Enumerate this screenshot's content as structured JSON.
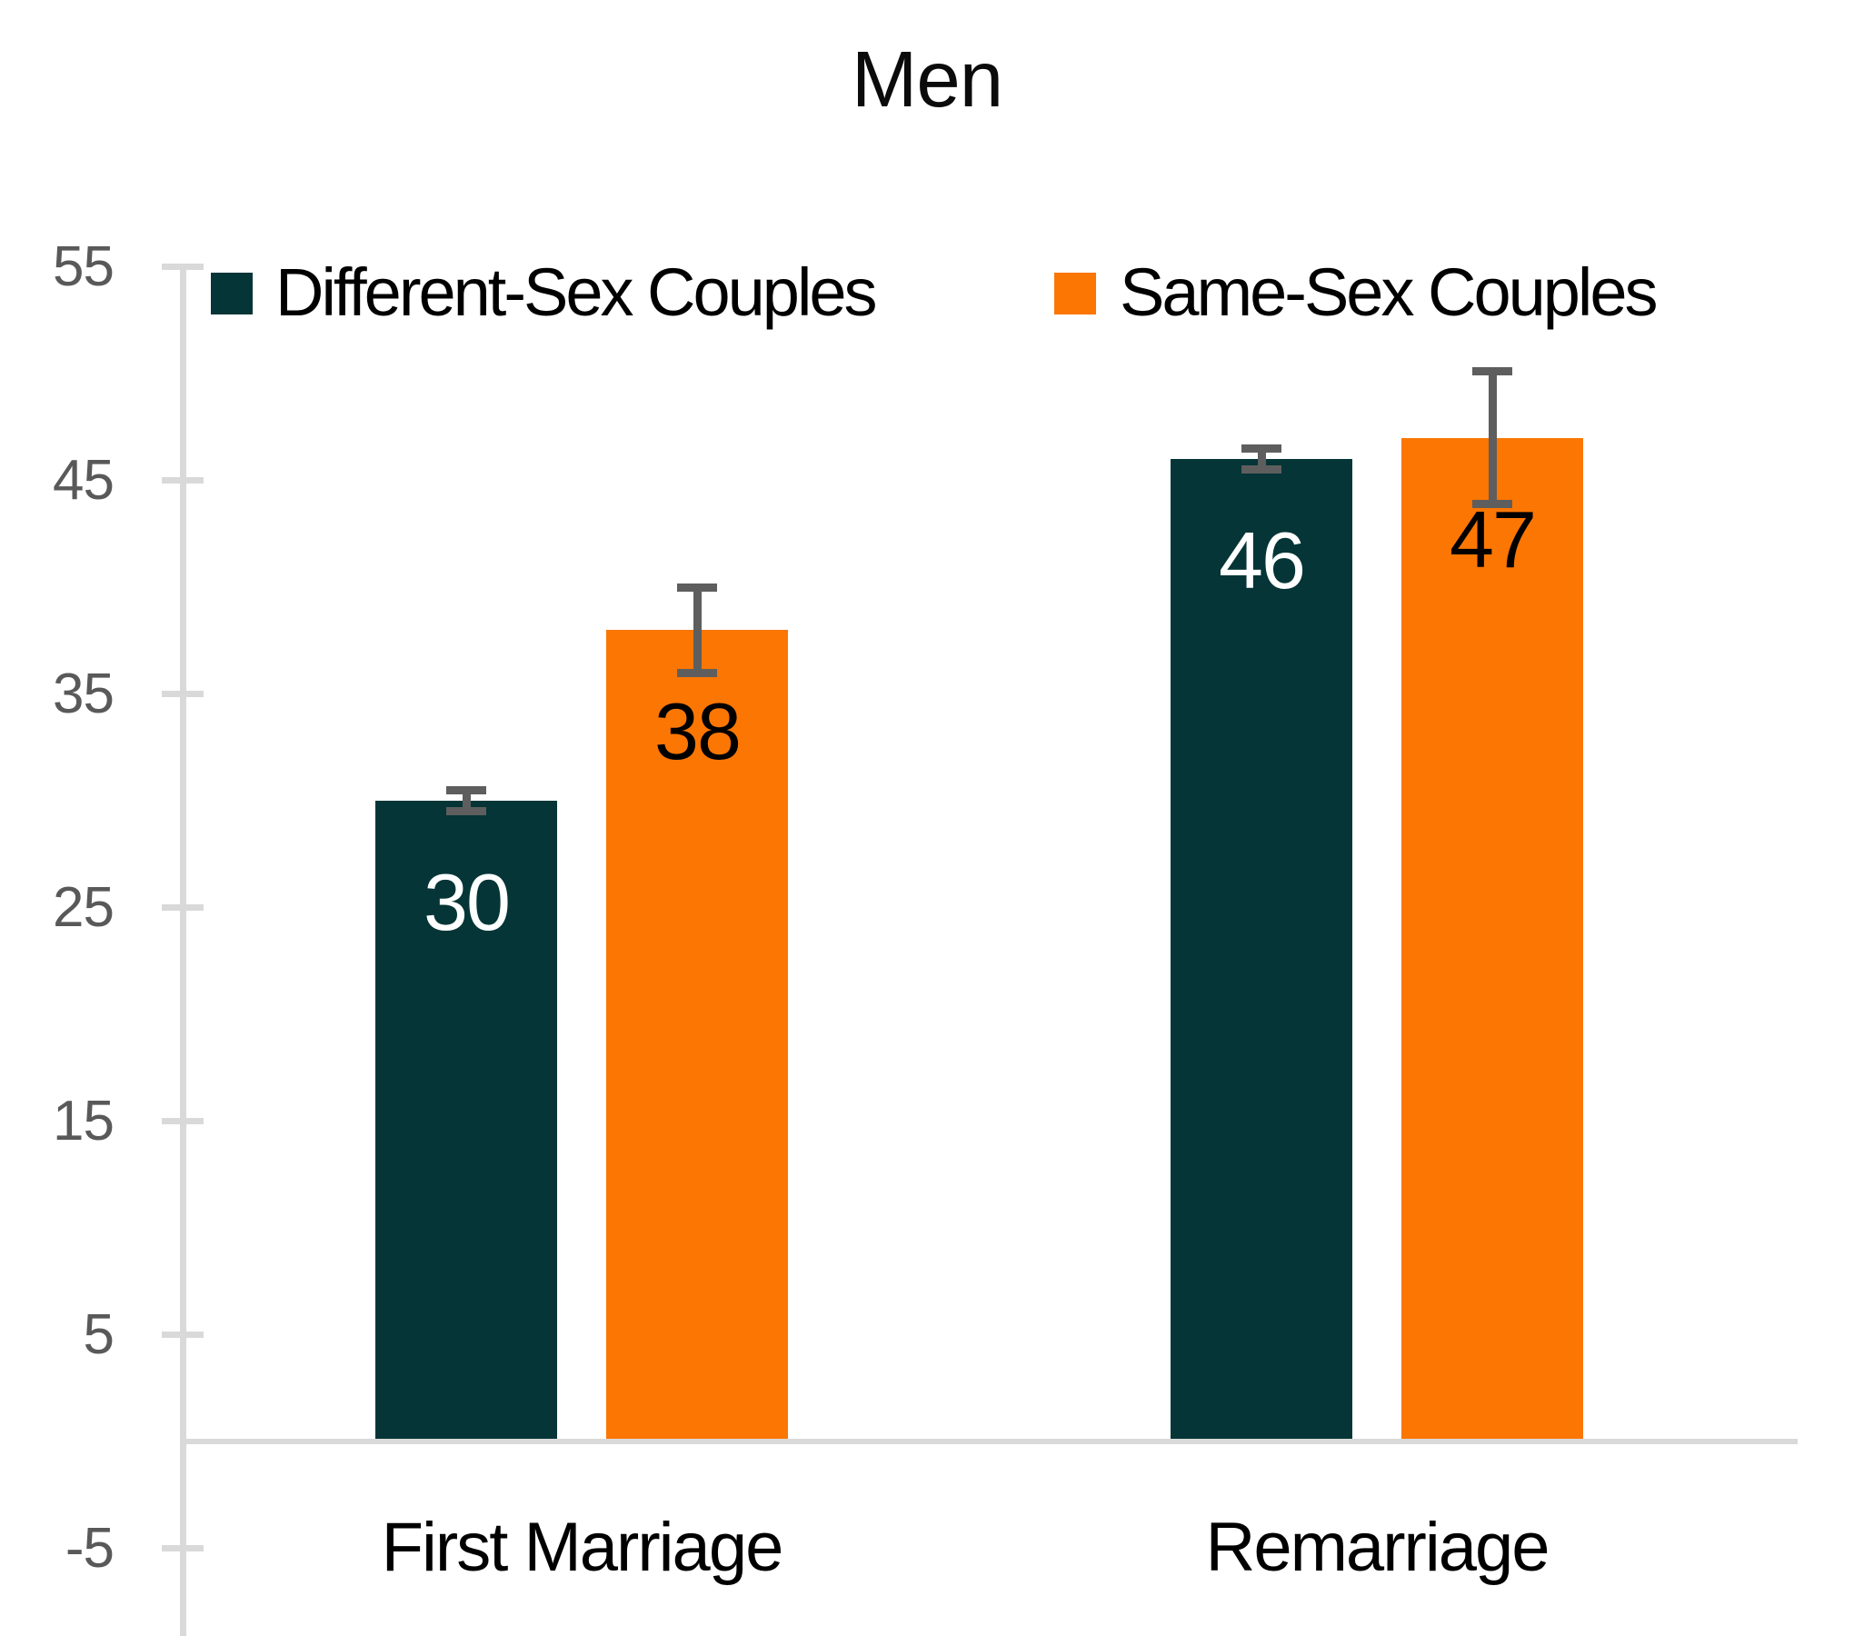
{
  "chart_data": {
    "type": "bar",
    "title": "Men",
    "categories": [
      "First Marriage",
      "Remarriage"
    ],
    "series": [
      {
        "name": "Different-Sex Couples",
        "color": "#053536",
        "value_label_color": "#ffffff",
        "values": [
          30,
          46
        ],
        "errors": [
          0.5,
          0.5
        ]
      },
      {
        "name": "Same-Sex Couples",
        "color": "#FB7603",
        "value_label_color": "#000000",
        "values": [
          38,
          47
        ],
        "errors": [
          2.0,
          3.1
        ]
      }
    ],
    "ylim": [
      -5,
      55
    ],
    "yticks": [
      55,
      45,
      35,
      25,
      15,
      5,
      -5
    ],
    "grid": false,
    "legend_position": "top-inside",
    "axis_color": "#D9D9D9",
    "tick_label_color": "#595959",
    "error_bar_color": "#5E5E5E",
    "background_color": "#ffffff",
    "title_color": "#0b0b0b"
  }
}
